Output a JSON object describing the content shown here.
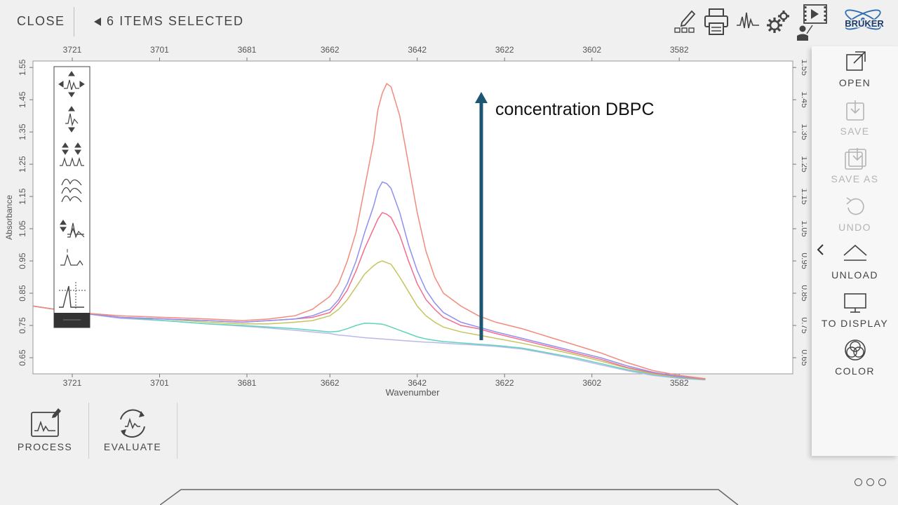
{
  "topbar": {
    "close_label": "CLOSE",
    "selection_label": "6 ITEMS SELECTED",
    "brand": "BRUKER"
  },
  "annotation": "concentration DBPC",
  "sidebar": {
    "items": [
      {
        "label": "OPEN",
        "icon": "open-external-icon",
        "enabled": true
      },
      {
        "label": "SAVE",
        "icon": "save-icon",
        "enabled": false
      },
      {
        "label": "SAVE AS",
        "icon": "save-as-icon",
        "enabled": false
      },
      {
        "label": "UNDO",
        "icon": "undo-icon",
        "enabled": false
      },
      {
        "label": "UNLOAD",
        "icon": "unload-icon",
        "enabled": true
      },
      {
        "label": "TO DISPLAY",
        "icon": "monitor-icon",
        "enabled": true
      },
      {
        "label": "COLOR",
        "icon": "color-wheel-icon",
        "enabled": true
      }
    ]
  },
  "bottom": {
    "process_label": "PROCESS",
    "evaluate_label": "EVALUATE"
  },
  "chart_data": {
    "type": "line",
    "xlabel": "Wavenumber",
    "ylabel": "Absorbance",
    "x_reversed": true,
    "xlim": [
      3730,
      3556
    ],
    "ylim": [
      0.6,
      1.57
    ],
    "x_ticks": [
      3721,
      3701,
      3681,
      3662,
      3642,
      3622,
      3602,
      3582
    ],
    "y_ticks": [
      "0.65",
      "0.75",
      "0.85",
      "0.95",
      "1.05",
      "1.15",
      "1.25",
      "1.35",
      "1.45",
      "1.55"
    ],
    "x": [
      3730,
      3720,
      3710,
      3700,
      3690,
      3682,
      3676,
      3670,
      3666,
      3662,
      3660,
      3658,
      3656,
      3654,
      3652,
      3651,
      3650,
      3649,
      3648,
      3646,
      3644,
      3642,
      3640,
      3638,
      3636,
      3632,
      3628,
      3624,
      3618,
      3612,
      3606,
      3600,
      3594,
      3588,
      3582,
      3576
    ],
    "series": [
      {
        "color": "#f28b7c",
        "values": [
          0.81,
          0.79,
          0.78,
          0.775,
          0.77,
          0.765,
          0.77,
          0.78,
          0.8,
          0.84,
          0.88,
          0.95,
          1.04,
          1.18,
          1.32,
          1.42,
          1.47,
          1.5,
          1.49,
          1.4,
          1.25,
          1.1,
          0.98,
          0.9,
          0.85,
          0.81,
          0.78,
          0.76,
          0.74,
          0.715,
          0.69,
          0.665,
          0.635,
          0.61,
          0.595,
          0.585
        ]
      },
      {
        "color": "#8f8ff2",
        "values": [
          0.81,
          0.79,
          0.775,
          0.77,
          0.765,
          0.76,
          0.765,
          0.77,
          0.78,
          0.8,
          0.83,
          0.88,
          0.95,
          1.04,
          1.12,
          1.17,
          1.195,
          1.19,
          1.175,
          1.1,
          1.0,
          0.92,
          0.86,
          0.82,
          0.79,
          0.76,
          0.745,
          0.73,
          0.71,
          0.69,
          0.67,
          0.65,
          0.625,
          0.605,
          0.592,
          0.585
        ]
      },
      {
        "color": "#f26d8f",
        "values": [
          0.81,
          0.79,
          0.775,
          0.77,
          0.765,
          0.76,
          0.765,
          0.77,
          0.775,
          0.79,
          0.82,
          0.86,
          0.92,
          0.99,
          1.05,
          1.08,
          1.1,
          1.095,
          1.085,
          1.03,
          0.95,
          0.88,
          0.83,
          0.8,
          0.775,
          0.75,
          0.74,
          0.725,
          0.705,
          0.685,
          0.665,
          0.645,
          0.62,
          0.603,
          0.591,
          0.584
        ]
      },
      {
        "color": "#c5c55e",
        "values": [
          0.81,
          0.79,
          0.775,
          0.77,
          0.76,
          0.755,
          0.755,
          0.76,
          0.765,
          0.78,
          0.8,
          0.83,
          0.87,
          0.91,
          0.935,
          0.945,
          0.95,
          0.945,
          0.94,
          0.9,
          0.855,
          0.81,
          0.78,
          0.76,
          0.745,
          0.73,
          0.72,
          0.71,
          0.695,
          0.678,
          0.66,
          0.64,
          0.618,
          0.6,
          0.59,
          0.583
        ]
      },
      {
        "color": "#5fd4b8",
        "values": [
          0.81,
          0.79,
          0.775,
          0.765,
          0.755,
          0.75,
          0.745,
          0.74,
          0.735,
          0.73,
          0.732,
          0.74,
          0.75,
          0.757,
          0.756,
          0.755,
          0.754,
          0.75,
          0.745,
          0.735,
          0.725,
          0.715,
          0.708,
          0.704,
          0.7,
          0.696,
          0.692,
          0.688,
          0.68,
          0.665,
          0.65,
          0.632,
          0.613,
          0.598,
          0.588,
          0.582
        ]
      },
      {
        "color": "#b9b9ee",
        "values": [
          0.81,
          0.79,
          0.772,
          0.765,
          0.755,
          0.748,
          0.742,
          0.735,
          0.73,
          0.725,
          0.72,
          0.718,
          0.715,
          0.712,
          0.71,
          0.709,
          0.708,
          0.707,
          0.706,
          0.704,
          0.702,
          0.7,
          0.698,
          0.697,
          0.695,
          0.692,
          0.689,
          0.685,
          0.677,
          0.662,
          0.646,
          0.628,
          0.61,
          0.595,
          0.586,
          0.581
        ]
      }
    ]
  }
}
